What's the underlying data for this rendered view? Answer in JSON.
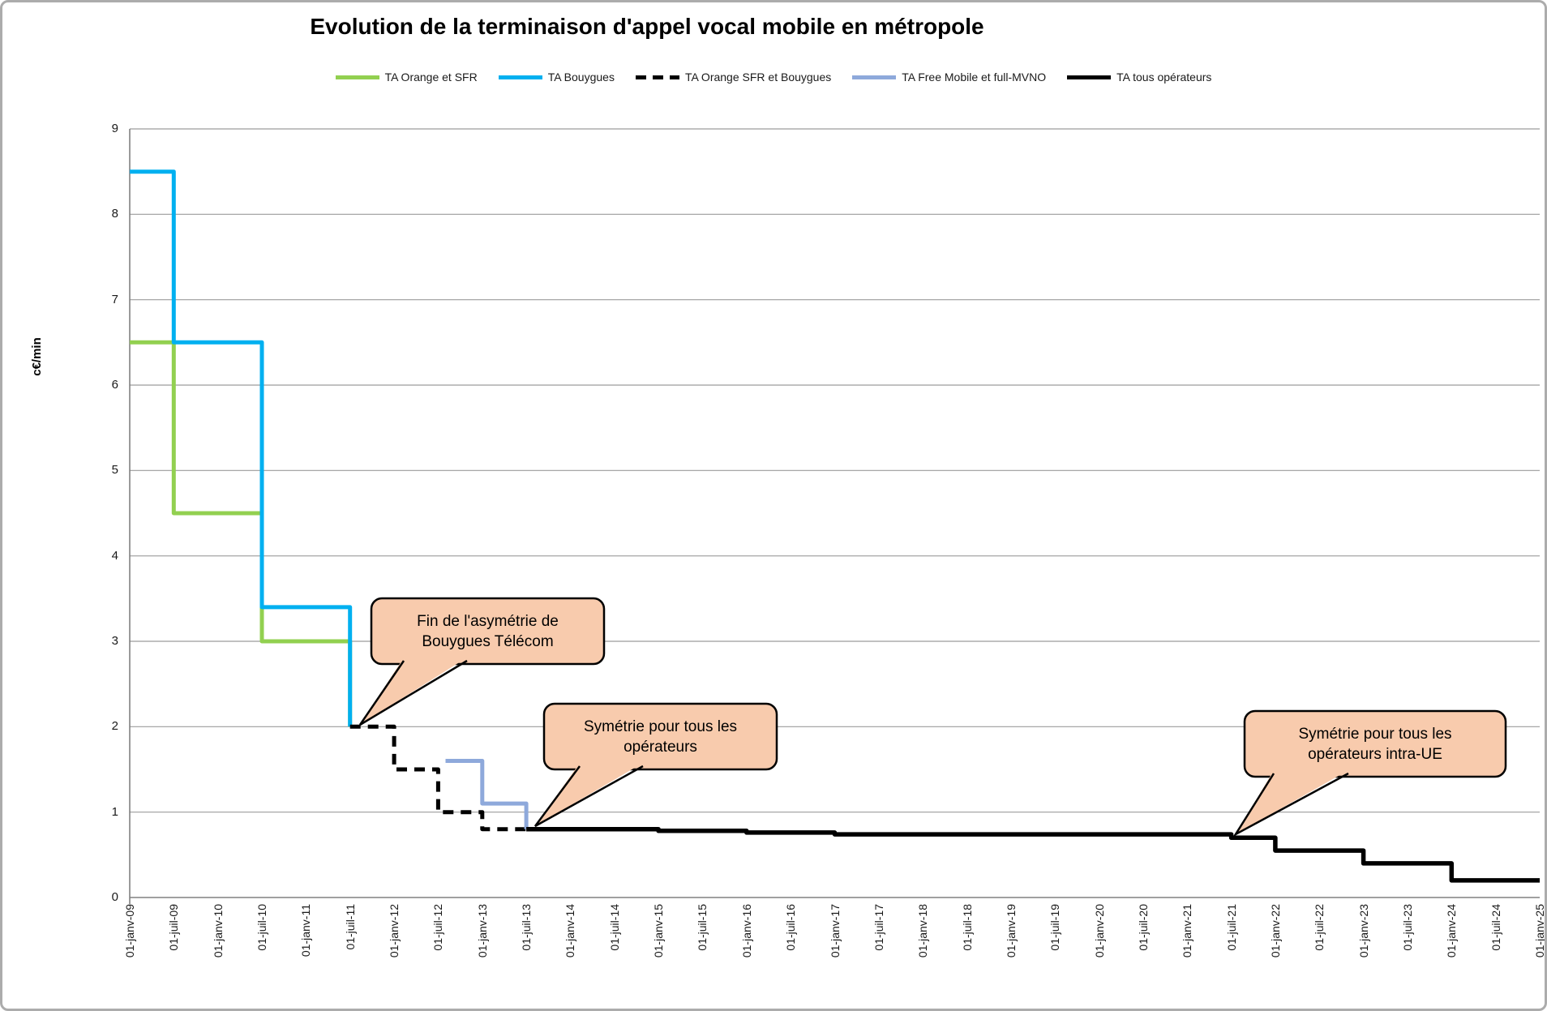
{
  "title": "Evolution de la terminaison d'appel vocal mobile en métropole",
  "chart_data": {
    "type": "line",
    "subtype": "step",
    "title": "Evolution de la terminaison d'appel vocal mobile en métropole",
    "xlabel": "",
    "ylabel": "c€/min",
    "ylim": [
      0,
      9
    ],
    "yticks": [
      0,
      1,
      2,
      3,
      4,
      5,
      6,
      7,
      8,
      9
    ],
    "grid": "horizontal",
    "legend_position": "top-center",
    "x_unit": "months since 01-janv-09",
    "xlim_months": [
      0,
      192
    ],
    "x_tick_step_months": 6,
    "x_labels": [
      "01-janv-09",
      "01-juil-09",
      "01-janv-10",
      "01-juil-10",
      "01-janv-11",
      "01-juil-11",
      "01-janv-12",
      "01-juil-12",
      "01-janv-13",
      "01-juil-13",
      "01-janv-14",
      "01-juil-14",
      "01-janv-15",
      "01-juil-15",
      "01-janv-16",
      "01-juil-16",
      "01-janv-17",
      "01-juil-17",
      "01-janv-18",
      "01-juil-18",
      "01-janv-19",
      "01-juil-19",
      "01-janv-20",
      "01-juil-20",
      "01-janv-21",
      "01-juil-21",
      "01-janv-22",
      "01-juil-22",
      "01-janv-23",
      "01-juil-23",
      "01-janv-24",
      "01-juil-24",
      "01-janv-25"
    ],
    "series": [
      {
        "name": "TA Orange et SFR",
        "color": "#92D050",
        "width": 5,
        "dash": null,
        "points": [
          [
            0,
            6.5
          ],
          [
            6,
            6.5
          ],
          [
            6,
            4.5
          ],
          [
            18,
            4.5
          ],
          [
            18,
            3.0
          ],
          [
            30,
            3.0
          ],
          [
            30,
            2.0
          ]
        ]
      },
      {
        "name": "TA Bouygues",
        "color": "#00B0F0",
        "width": 5,
        "dash": null,
        "points": [
          [
            0,
            8.5
          ],
          [
            6,
            8.5
          ],
          [
            6,
            6.5
          ],
          [
            18,
            6.5
          ],
          [
            18,
            3.4
          ],
          [
            30,
            3.4
          ],
          [
            30,
            2.0
          ]
        ]
      },
      {
        "name": "TA Orange SFR et Bouygues",
        "color": "#000000",
        "width": 5,
        "dash": "13 9",
        "points": [
          [
            30,
            2.0
          ],
          [
            36,
            2.0
          ],
          [
            36,
            1.5
          ],
          [
            42,
            1.5
          ],
          [
            42,
            1.0
          ],
          [
            48,
            1.0
          ],
          [
            48,
            0.8
          ],
          [
            54,
            0.8
          ]
        ]
      },
      {
        "name": "TA Free Mobile et full-MVNO",
        "color": "#8EA9DB",
        "width": 5,
        "dash": null,
        "points": [
          [
            43,
            1.6
          ],
          [
            48,
            1.6
          ],
          [
            48,
            1.1
          ],
          [
            54,
            1.1
          ],
          [
            54,
            0.8
          ]
        ]
      },
      {
        "name": "TA tous opérateurs",
        "color": "#000000",
        "width": 5.5,
        "dash": null,
        "points": [
          [
            54,
            0.8
          ],
          [
            72,
            0.8
          ],
          [
            72,
            0.78
          ],
          [
            84,
            0.78
          ],
          [
            84,
            0.76
          ],
          [
            96,
            0.76
          ],
          [
            96,
            0.74
          ],
          [
            150,
            0.74
          ],
          [
            150,
            0.7
          ],
          [
            156,
            0.7
          ],
          [
            156,
            0.55
          ],
          [
            168,
            0.55
          ],
          [
            168,
            0.4
          ],
          [
            180,
            0.4
          ],
          [
            180,
            0.2
          ],
          [
            192,
            0.2
          ]
        ]
      }
    ],
    "annotations": [
      {
        "line1": "Fin de l'asymétrie de",
        "line2": "Bouygues Télécom",
        "target_date": "01-juil-11",
        "target_value": 2.0
      },
      {
        "line1": "Symétrie pour tous les",
        "line2": "opérateurs",
        "target_date": "01-juil-13",
        "target_value": 0.8
      },
      {
        "line1": "Symétrie pour tous les",
        "line2": "opérateurs intra-UE",
        "target_date": "01-juil-21",
        "target_value": 0.7
      }
    ],
    "annotation_fill_color": "#F8CBAD",
    "gridline_color": "#9C9C9C",
    "axis_line_color": "#808080"
  }
}
